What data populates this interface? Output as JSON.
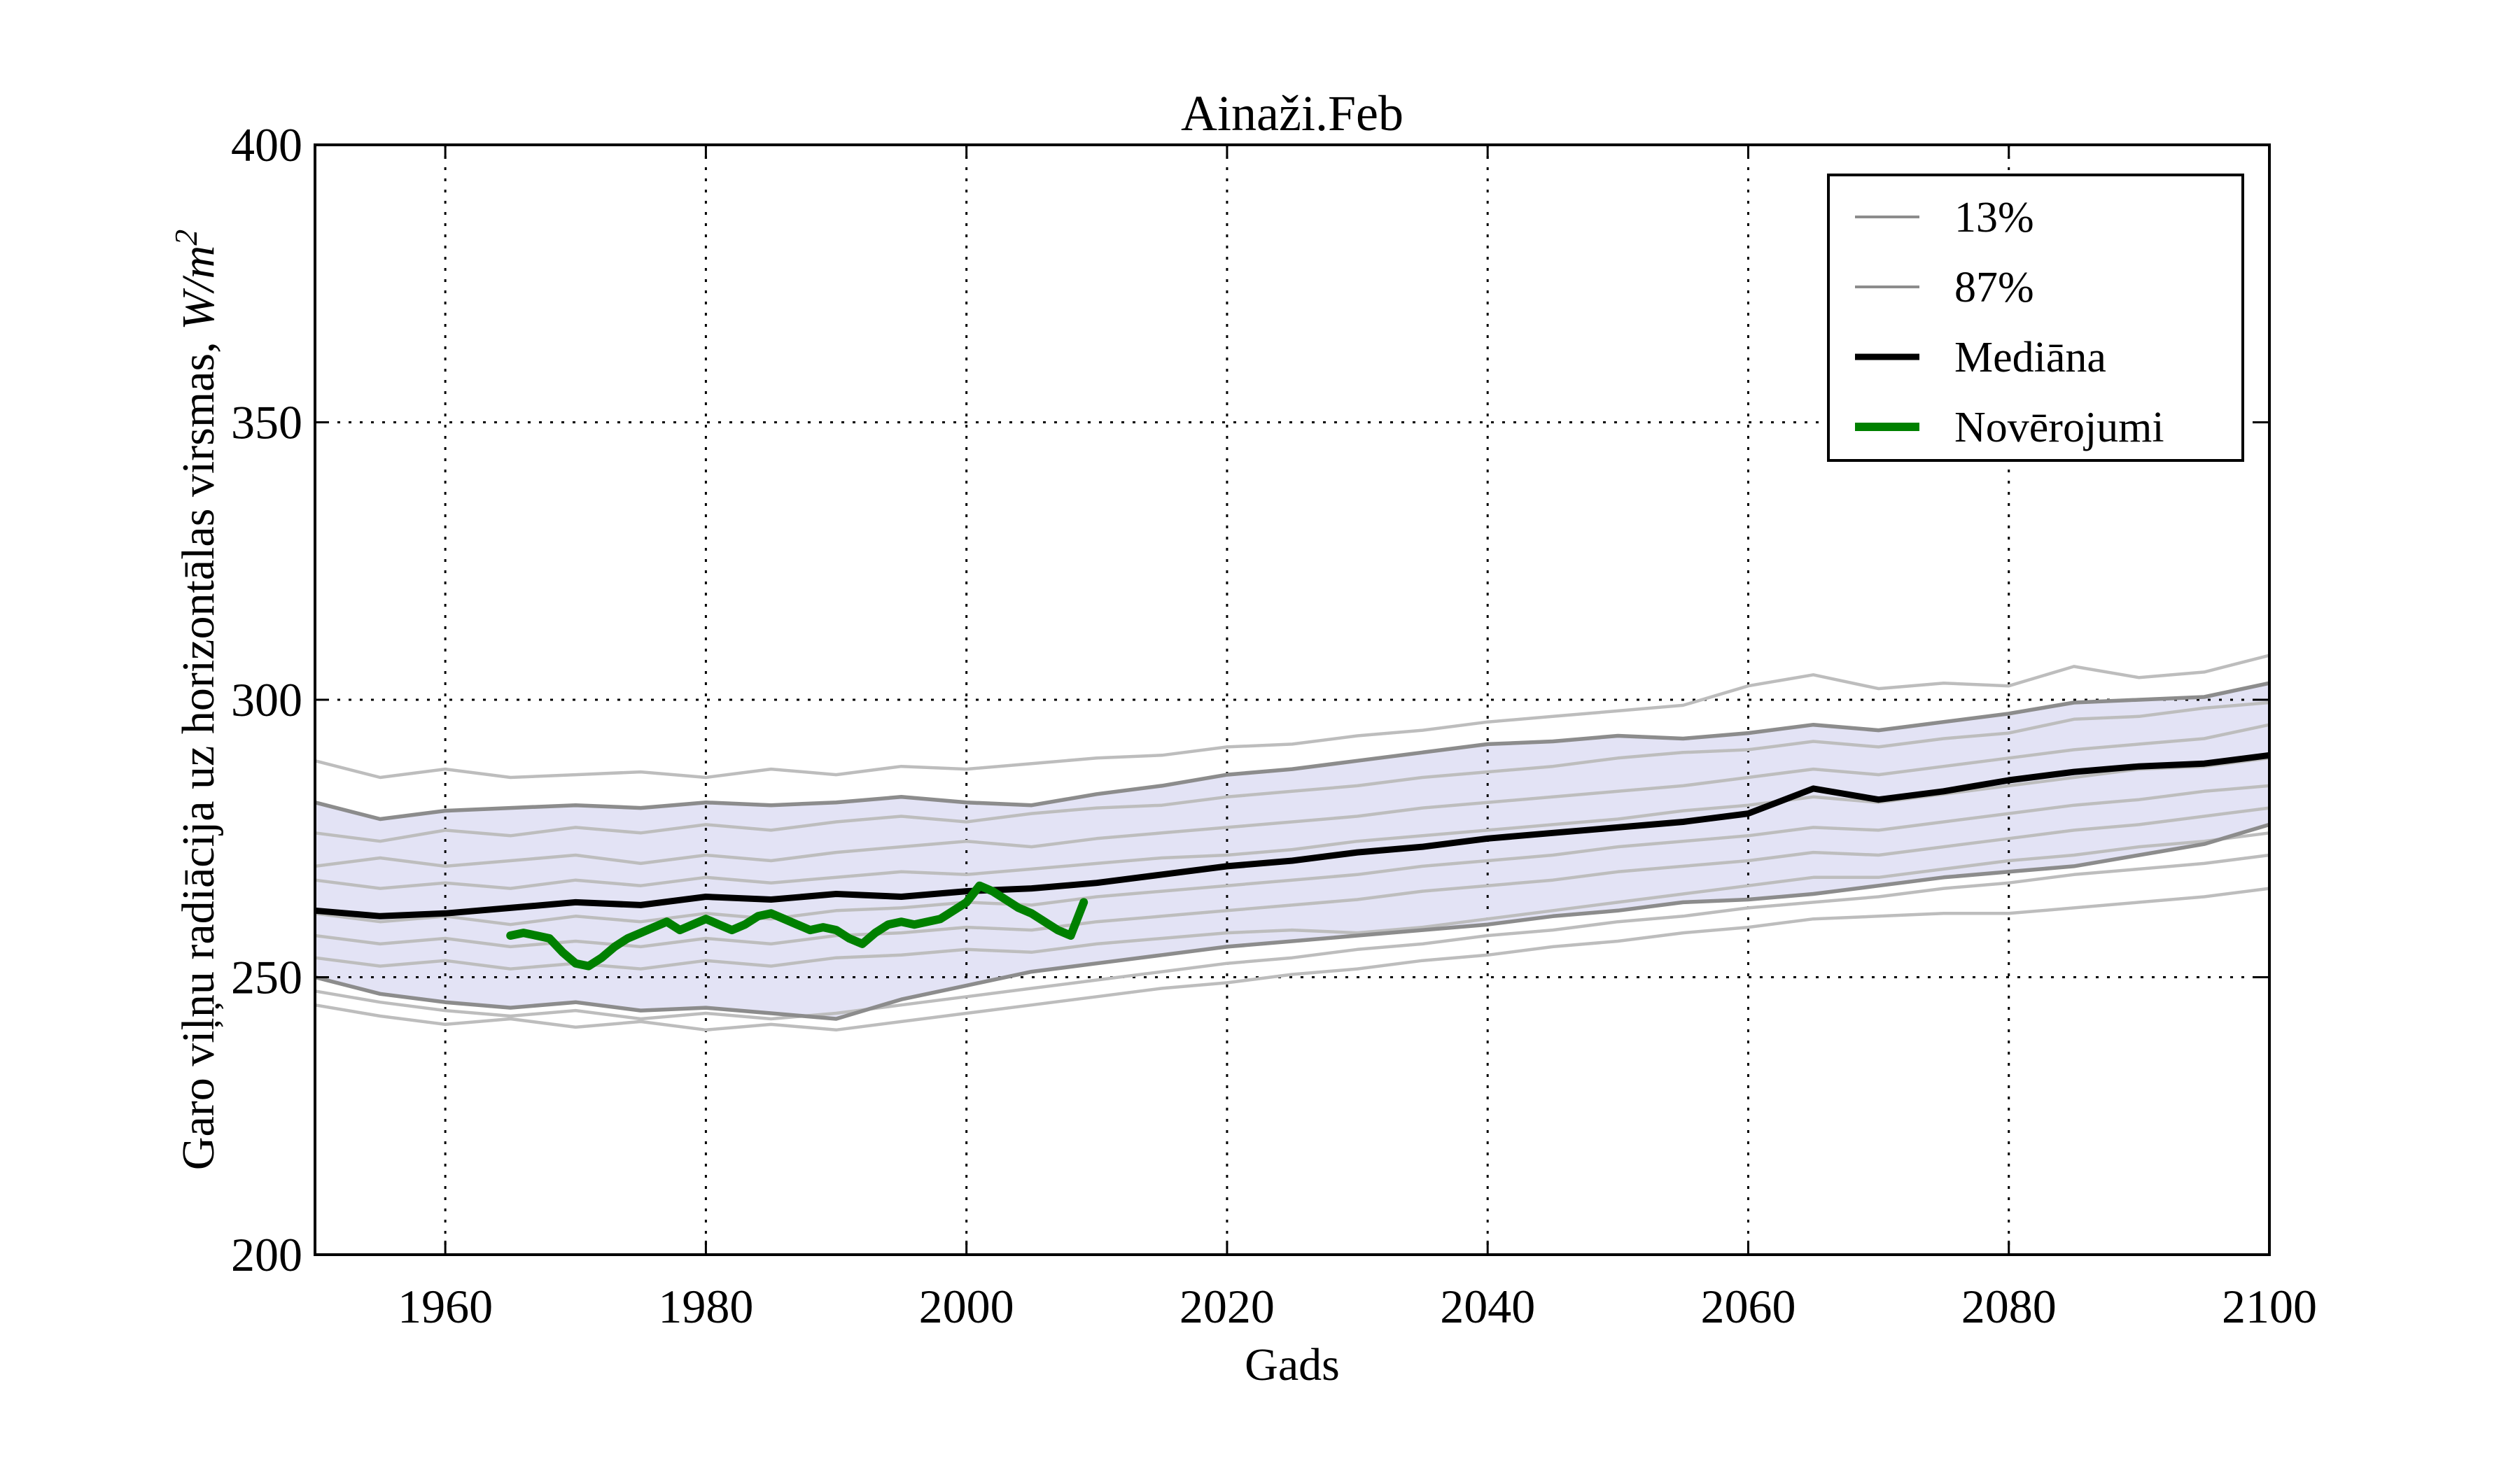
{
  "title": "Ainaži.Feb",
  "xlabel": "Gads",
  "ylabel": {
    "text": "Garo viļņu radiācija uz horizontālas virsmas, ",
    "math": "W/m",
    "sup": "2"
  },
  "legend": [
    {
      "label": "13%",
      "color": "#8c8c8c",
      "width": 4
    },
    {
      "label": "87%",
      "color": "#8c8c8c",
      "width": 4
    },
    {
      "label": "Mediāna",
      "color": "#000000",
      "width": 9
    },
    {
      "label": "Novērojumi",
      "color": "#008000",
      "width": 12
    }
  ],
  "axes": {
    "xlim": [
      1950,
      2100
    ],
    "ylim": [
      200,
      400
    ],
    "xticks": [
      1960,
      1980,
      2000,
      2020,
      2040,
      2060,
      2080,
      2100
    ],
    "yticks": [
      200,
      250,
      300,
      350,
      400
    ]
  },
  "chart_data": {
    "type": "line",
    "title": "Ainaži.Feb",
    "xlabel": "Gads",
    "ylabel": "Garo viļņu radiācija uz horizontālas virsmas, W/m²",
    "xlim": [
      1950,
      2100
    ],
    "ylim": [
      200,
      400
    ],
    "grid": "dotted",
    "legend_position": "upper right",
    "resolution_note": "model series estimated at 5-year steps; observations yearly",
    "band_fill_color": "#e3e3f5",
    "percentile_color": "#8c8c8c",
    "ensemble_color": "#bdbdbd",
    "median_color": "#000000",
    "observations_color": "#008000",
    "model_years": [
      1950,
      1955,
      1960,
      1965,
      1970,
      1975,
      1980,
      1985,
      1990,
      1995,
      2000,
      2005,
      2010,
      2015,
      2020,
      2025,
      2030,
      2035,
      2040,
      2045,
      2050,
      2055,
      2060,
      2065,
      2070,
      2075,
      2080,
      2085,
      2090,
      2095,
      2100
    ],
    "percentile_87": [
      281.5,
      278.5,
      280,
      280.5,
      281,
      280.5,
      281.5,
      281,
      281.5,
      282.5,
      281.5,
      281,
      283,
      284.5,
      286.5,
      287.5,
      289,
      290.5,
      292,
      292.5,
      293.5,
      293,
      294,
      295.5,
      294.5,
      296,
      297.5,
      299.5,
      300,
      300.5,
      303
    ],
    "percentile_13": [
      250,
      247,
      245.5,
      244.5,
      245.5,
      244,
      244.5,
      243.5,
      242.5,
      246,
      248.5,
      251,
      252.5,
      254,
      255.5,
      256.5,
      257.5,
      258.5,
      259.5,
      261,
      262,
      263.5,
      264,
      265,
      266.5,
      268,
      269,
      270,
      272,
      274,
      277.5
    ],
    "median": [
      262,
      261,
      261.5,
      262.5,
      263.5,
      263,
      264.5,
      264,
      265,
      264.5,
      265.5,
      266,
      267,
      268.5,
      270,
      271,
      272.5,
      273.5,
      275,
      276,
      277,
      278,
      279.5,
      284,
      282,
      283.5,
      285.5,
      287,
      288,
      288.5,
      290
    ],
    "ensemble_members": [
      [
        289,
        286,
        287.5,
        286,
        286.5,
        287,
        286,
        287.5,
        286.5,
        288,
        287.5,
        288.5,
        289.5,
        290,
        291.5,
        292,
        293.5,
        294.5,
        296,
        297,
        298,
        299,
        302.5,
        304.5,
        302,
        303,
        302.5,
        306,
        304,
        305,
        308
      ],
      [
        276,
        274.5,
        276.5,
        275.5,
        277,
        276,
        277.5,
        276.5,
        278,
        279,
        278,
        279.5,
        280.5,
        281,
        282.5,
        283.5,
        284.5,
        286,
        287,
        288,
        289.5,
        290.5,
        291,
        292.5,
        291.5,
        293,
        294,
        296.5,
        297,
        298.5,
        299.5
      ],
      [
        270,
        271.5,
        270,
        271,
        272,
        270.5,
        272,
        271,
        272.5,
        273.5,
        274.5,
        273.5,
        275,
        276,
        277,
        278,
        279,
        280.5,
        281.5,
        282.5,
        283.5,
        284.5,
        286,
        287.5,
        286.5,
        288,
        289.5,
        291,
        292,
        293,
        295.5
      ],
      [
        267.5,
        266,
        267,
        266,
        267.5,
        266.5,
        268,
        267,
        268,
        269,
        268.5,
        269.5,
        270.5,
        271.5,
        272,
        273,
        274.5,
        275.5,
        276.5,
        277.5,
        278.5,
        280,
        281,
        282.5,
        281.5,
        283,
        284.5,
        286,
        287.5,
        288,
        289.5
      ],
      [
        261.5,
        260,
        261,
        259.5,
        261,
        260,
        261.5,
        260.5,
        262,
        262.5,
        263.5,
        263,
        264.5,
        265.5,
        266.5,
        267.5,
        268.5,
        270,
        271,
        272,
        273.5,
        274.5,
        275.5,
        277,
        276.5,
        278,
        279.5,
        281,
        282,
        283.5,
        284.5
      ],
      [
        257.5,
        256,
        257,
        255.5,
        256.5,
        255.5,
        257,
        256,
        257.5,
        258,
        259,
        258.5,
        260,
        261,
        262,
        263,
        264,
        265.5,
        266.5,
        267.5,
        269,
        270,
        271,
        272.5,
        272,
        273.5,
        275,
        276.5,
        277.5,
        279,
        280.5
      ],
      [
        253.5,
        252,
        253,
        251.5,
        252.5,
        251.5,
        253,
        252,
        253.5,
        254,
        255,
        254.5,
        256,
        257,
        258,
        258.5,
        258,
        259,
        260.5,
        262,
        263.5,
        265,
        266.5,
        268,
        268,
        269.5,
        271,
        272,
        273.5,
        274.5,
        276
      ],
      [
        247.5,
        245.5,
        244,
        243,
        244,
        242.5,
        243.5,
        242.5,
        243.5,
        245,
        246.5,
        248,
        249.5,
        251,
        252.5,
        253.5,
        255,
        256,
        257.5,
        258.5,
        260,
        261,
        262.5,
        263.5,
        264.5,
        266,
        267,
        268.5,
        269.5,
        270.5,
        272
      ],
      [
        245,
        243,
        241.5,
        242.5,
        241,
        242,
        240.5,
        241.5,
        240.5,
        242,
        243.5,
        245,
        246.5,
        248,
        249,
        250.5,
        251.5,
        253,
        254,
        255.5,
        256.5,
        258,
        259,
        260.5,
        261,
        261.5,
        261.5,
        262.5,
        263.5,
        264.5,
        266
      ]
    ],
    "observations": {
      "years": [
        1965,
        1966,
        1967,
        1968,
        1969,
        1970,
        1971,
        1972,
        1973,
        1974,
        1975,
        1976,
        1977,
        1978,
        1979,
        1980,
        1981,
        1982,
        1983,
        1984,
        1985,
        1986,
        1987,
        1988,
        1989,
        1990,
        1991,
        1992,
        1993,
        1994,
        1995,
        1996,
        1997,
        1998,
        1999,
        2000,
        2001,
        2002,
        2003,
        2004,
        2005,
        2006,
        2007,
        2008,
        2009
      ],
      "values": [
        257.5,
        258,
        257.5,
        257,
        254.5,
        252.5,
        252,
        253.5,
        255.5,
        257,
        258,
        259,
        260,
        258.5,
        259.5,
        260.5,
        259.5,
        258.5,
        259.5,
        261,
        261.5,
        260.5,
        259.5,
        258.5,
        259,
        258.5,
        257,
        256,
        258,
        259.5,
        260,
        259.5,
        260,
        260.5,
        262,
        263.5,
        266.5,
        265.5,
        264,
        262.5,
        261.5,
        260,
        258.5,
        257.5,
        263.5
      ]
    }
  }
}
